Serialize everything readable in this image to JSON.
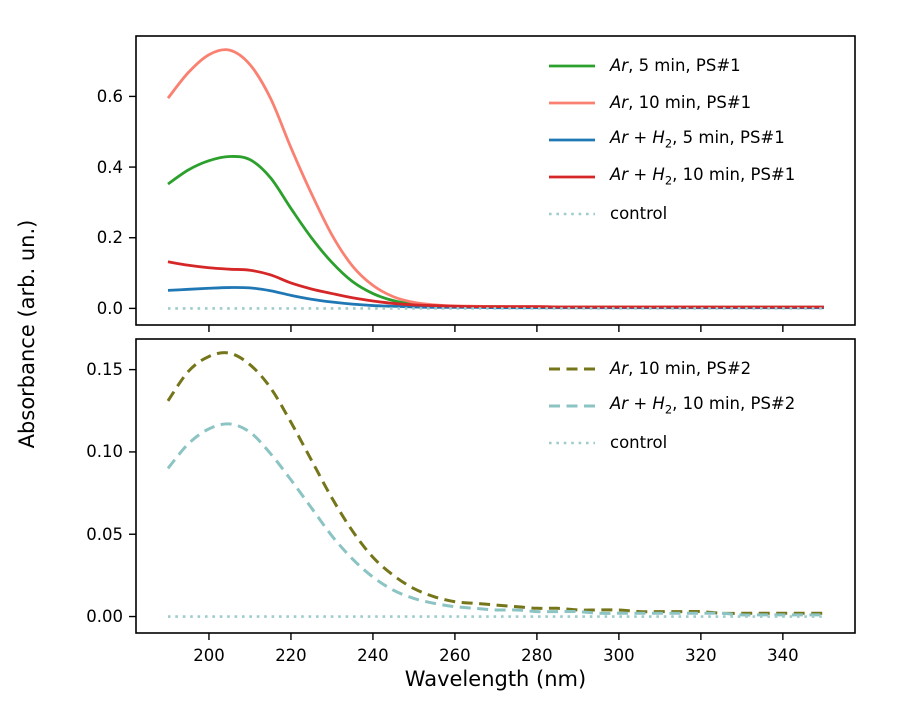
{
  "figure": {
    "background": "#ffffff",
    "text_color": "#000000",
    "xlabel": "Wavelength (nm)",
    "ylabel": "Absorbance (arb. un.)"
  },
  "chart_data": [
    {
      "type": "line",
      "panel": "top",
      "title": "",
      "xlabel": "Wavelength (nm)",
      "ylabel": "Absorbance (arb. un.)",
      "xlim": [
        182.2,
        357.6
      ],
      "ylim": [
        -0.047,
        0.771
      ],
      "grid": false,
      "legend_position": "upper right",
      "frame_color": "#000000",
      "xticks": [
        200,
        220,
        240,
        260,
        280,
        300,
        320,
        340
      ],
      "xtick_labels": [
        "200",
        "220",
        "240",
        "260",
        "280",
        "300",
        "320",
        "340"
      ],
      "show_xtick_labels": false,
      "yticks": [
        0.0,
        0.2,
        0.4,
        0.6
      ],
      "ytick_labels": [
        "0.0",
        "0.2",
        "0.4",
        "0.6"
      ],
      "x": [
        190,
        195,
        200,
        205,
        210,
        215,
        220,
        225,
        230,
        235,
        240,
        245,
        250,
        255,
        260,
        265,
        270,
        275,
        280,
        285,
        290,
        295,
        300,
        305,
        310,
        315,
        320,
        325,
        330,
        335,
        340,
        345,
        350
      ],
      "series": [
        {
          "name": "Ar, 5 min, PS#1",
          "color": "#2ca02c",
          "linestyle": "solid",
          "width": 2.8,
          "legend_segments": [
            {
              "t": "Ar",
              "s": "i"
            },
            {
              "t": ", 5 min, PS#1",
              "s": "n"
            }
          ],
          "values": [
            0.352,
            0.392,
            0.418,
            0.43,
            0.421,
            0.37,
            0.283,
            0.2,
            0.13,
            0.076,
            0.042,
            0.022,
            0.012,
            0.008,
            0.006,
            0.005,
            0.005,
            0.004,
            0.004,
            0.004,
            0.004,
            0.004,
            0.004,
            0.003,
            0.003,
            0.003,
            0.003,
            0.003,
            0.003,
            0.003,
            0.003,
            0.003,
            0.003
          ]
        },
        {
          "name": "Ar, 10 min, PS#1",
          "color": "#fa8072",
          "linestyle": "solid",
          "width": 2.8,
          "legend_segments": [
            {
              "t": "Ar",
              "s": "i"
            },
            {
              "t": ", 10 min, PS#1",
              "s": "n"
            }
          ],
          "values": [
            0.595,
            0.668,
            0.718,
            0.731,
            0.69,
            0.595,
            0.455,
            0.325,
            0.208,
            0.12,
            0.065,
            0.033,
            0.017,
            0.01,
            0.007,
            0.006,
            0.005,
            0.005,
            0.005,
            0.004,
            0.004,
            0.004,
            0.004,
            0.004,
            0.004,
            0.004,
            0.004,
            0.003,
            0.003,
            0.003,
            0.003,
            0.003,
            0.003
          ]
        },
        {
          "name": "Ar + H2, 5 min, PS#1",
          "color": "#1f77b4",
          "linestyle": "solid",
          "width": 2.8,
          "legend_segments": [
            {
              "t": "Ar",
              "s": "i"
            },
            {
              "t": " + ",
              "s": "n"
            },
            {
              "t": "H",
              "s": "i"
            },
            {
              "t": "2",
              "s": "sub"
            },
            {
              "t": ", 5 min, PS#1",
              "s": "n"
            }
          ],
          "values": [
            0.051,
            0.054,
            0.057,
            0.059,
            0.058,
            0.05,
            0.037,
            0.026,
            0.018,
            0.012,
            0.008,
            0.006,
            0.004,
            0.003,
            0.003,
            0.003,
            0.002,
            0.002,
            0.002,
            0.002,
            0.002,
            0.002,
            0.002,
            0.002,
            0.002,
            0.002,
            0.002,
            0.002,
            0.002,
            0.002,
            0.002,
            0.002,
            0.002
          ]
        },
        {
          "name": "Ar + H2, 10 min, PS#1",
          "color": "#d62728",
          "linestyle": "solid",
          "width": 2.8,
          "legend_segments": [
            {
              "t": "Ar",
              "s": "i"
            },
            {
              "t": " + ",
              "s": "n"
            },
            {
              "t": "H",
              "s": "i"
            },
            {
              "t": "2",
              "s": "sub"
            },
            {
              "t": ", 10 min, PS#1",
              "s": "n"
            }
          ],
          "values": [
            0.132,
            0.122,
            0.115,
            0.111,
            0.108,
            0.095,
            0.072,
            0.055,
            0.042,
            0.03,
            0.021,
            0.014,
            0.01,
            0.008,
            0.006,
            0.005,
            0.005,
            0.005,
            0.005,
            0.004,
            0.004,
            0.004,
            0.004,
            0.004,
            0.004,
            0.004,
            0.004,
            0.004,
            0.004,
            0.004,
            0.004,
            0.004,
            0.004
          ]
        },
        {
          "name": "control",
          "color": "#9ecccc",
          "linestyle": "dotted",
          "width": 2.6,
          "legend_segments": [
            {
              "t": "control",
              "s": "n"
            }
          ],
          "values": [
            0,
            0,
            0,
            0,
            0,
            0,
            0,
            0,
            0,
            0,
            0,
            0,
            0,
            0,
            0,
            0,
            0,
            0,
            0,
            0,
            0,
            0,
            0,
            0,
            0,
            0,
            0,
            0,
            0,
            0,
            0,
            0,
            0
          ]
        }
      ]
    },
    {
      "type": "line",
      "panel": "bottom",
      "title": "",
      "xlabel": "Wavelength (nm)",
      "ylabel": "Absorbance (arb. un.)",
      "xlim": [
        182.2,
        357.6
      ],
      "ylim": [
        -0.01,
        0.1686
      ],
      "grid": false,
      "legend_position": "upper right",
      "frame_color": "#000000",
      "xticks": [
        200,
        220,
        240,
        260,
        280,
        300,
        320,
        340
      ],
      "xtick_labels": [
        "200",
        "220",
        "240",
        "260",
        "280",
        "300",
        "320",
        "340"
      ],
      "show_xtick_labels": true,
      "yticks": [
        0.0,
        0.05,
        0.1,
        0.15
      ],
      "ytick_labels": [
        "0.00",
        "0.05",
        "0.10",
        "0.15"
      ],
      "x": [
        190,
        195,
        200,
        205,
        210,
        215,
        220,
        225,
        230,
        235,
        240,
        245,
        250,
        255,
        260,
        265,
        270,
        275,
        280,
        285,
        290,
        295,
        300,
        305,
        310,
        315,
        320,
        325,
        330,
        335,
        340,
        345,
        350
      ],
      "series": [
        {
          "name": "Ar, 10 min, PS#2",
          "color": "#75751a",
          "linestyle": "dashed",
          "width": 3.0,
          "legend_segments": [
            {
              "t": "Ar",
              "s": "i"
            },
            {
              "t": ", 10 min, PS#2",
              "s": "n"
            }
          ],
          "values": [
            0.131,
            0.149,
            0.158,
            0.16,
            0.153,
            0.139,
            0.118,
            0.095,
            0.072,
            0.052,
            0.036,
            0.025,
            0.017,
            0.012,
            0.009,
            0.008,
            0.007,
            0.006,
            0.005,
            0.005,
            0.004,
            0.004,
            0.004,
            0.003,
            0.003,
            0.003,
            0.003,
            0.002,
            0.002,
            0.002,
            0.002,
            0.002,
            0.002
          ]
        },
        {
          "name": "Ar + H2, 10 min, PS#2",
          "color": "#8cc3c3",
          "linestyle": "dashed",
          "width": 3.0,
          "legend_segments": [
            {
              "t": "Ar",
              "s": "i"
            },
            {
              "t": " + ",
              "s": "n"
            },
            {
              "t": "H",
              "s": "i"
            },
            {
              "t": "2",
              "s": "sub"
            },
            {
              "t": ", 10 min, PS#2",
              "s": "n"
            }
          ],
          "values": [
            0.09,
            0.105,
            0.114,
            0.117,
            0.112,
            0.099,
            0.083,
            0.066,
            0.049,
            0.035,
            0.024,
            0.016,
            0.011,
            0.008,
            0.006,
            0.005,
            0.004,
            0.004,
            0.003,
            0.003,
            0.003,
            0.002,
            0.002,
            0.002,
            0.002,
            0.002,
            0.002,
            0.002,
            0.001,
            0.001,
            0.001,
            0.001,
            0.001
          ]
        },
        {
          "name": "control",
          "color": "#9ecccc",
          "linestyle": "dotted",
          "width": 2.6,
          "legend_segments": [
            {
              "t": "control",
              "s": "n"
            }
          ],
          "values": [
            0,
            0,
            0,
            0,
            0,
            0,
            0,
            0,
            0,
            0,
            0,
            0,
            0,
            0,
            0,
            0,
            0,
            0,
            0,
            0,
            0,
            0,
            0,
            0,
            0,
            0,
            0,
            0,
            0,
            0,
            0,
            0,
            0
          ]
        }
      ]
    }
  ]
}
